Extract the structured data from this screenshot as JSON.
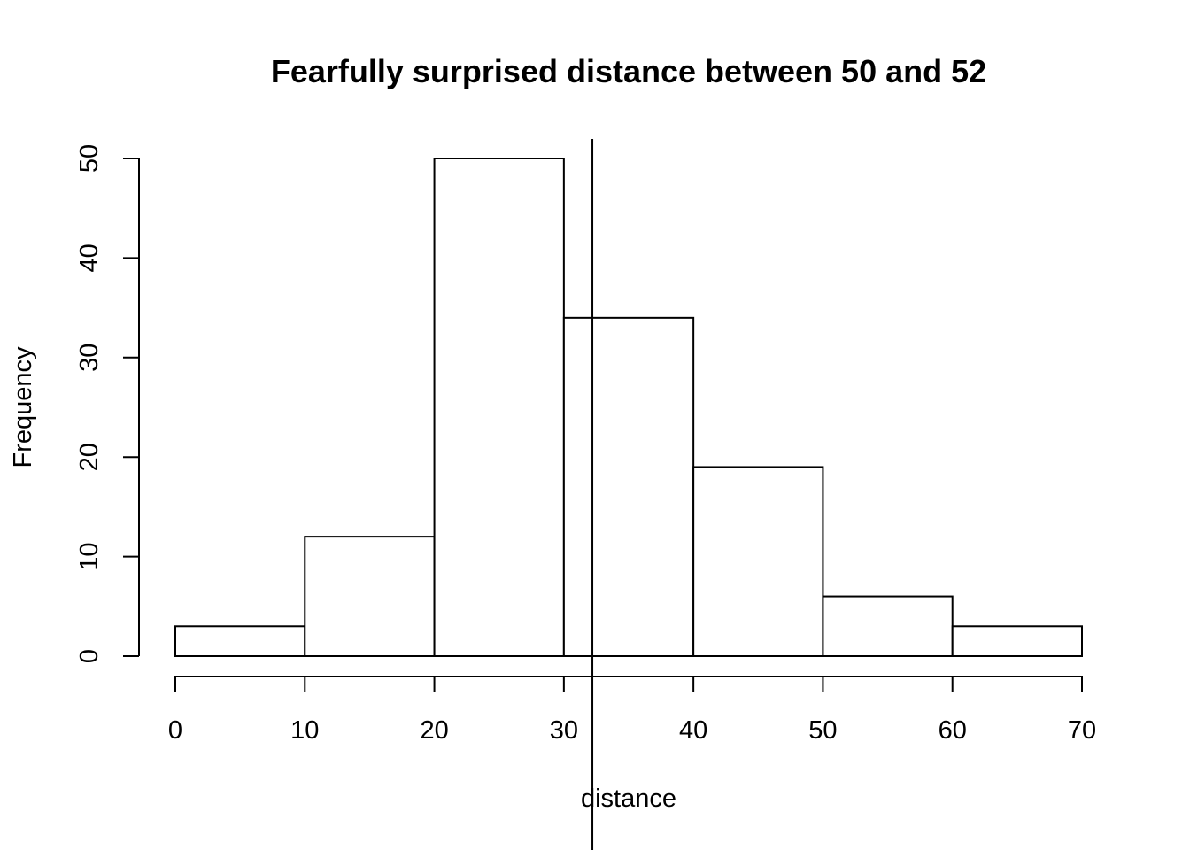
{
  "chart_data": {
    "type": "bar",
    "title": "Fearfully surprised distance between 50 and 52",
    "xlabel": "distance",
    "ylabel": "Frequency",
    "bins": [
      {
        "from": 0,
        "to": 10,
        "count": 3
      },
      {
        "from": 10,
        "to": 20,
        "count": 12
      },
      {
        "from": 20,
        "to": 30,
        "count": 50
      },
      {
        "from": 30,
        "to": 40,
        "count": 34
      },
      {
        "from": 40,
        "to": 50,
        "count": 19
      },
      {
        "from": 50,
        "to": 60,
        "count": 6
      },
      {
        "from": 60,
        "to": 70,
        "count": 3
      }
    ],
    "x_ticks": [
      0,
      10,
      20,
      30,
      40,
      50,
      60,
      70
    ],
    "y_ticks": [
      0,
      10,
      20,
      30,
      40,
      50
    ],
    "xlim": [
      0,
      70
    ],
    "ylim": [
      0,
      50
    ],
    "reference_line_x": 32.2,
    "grid": false,
    "colors": {
      "bar_fill": "#ffffff",
      "stroke": "#000000"
    }
  }
}
